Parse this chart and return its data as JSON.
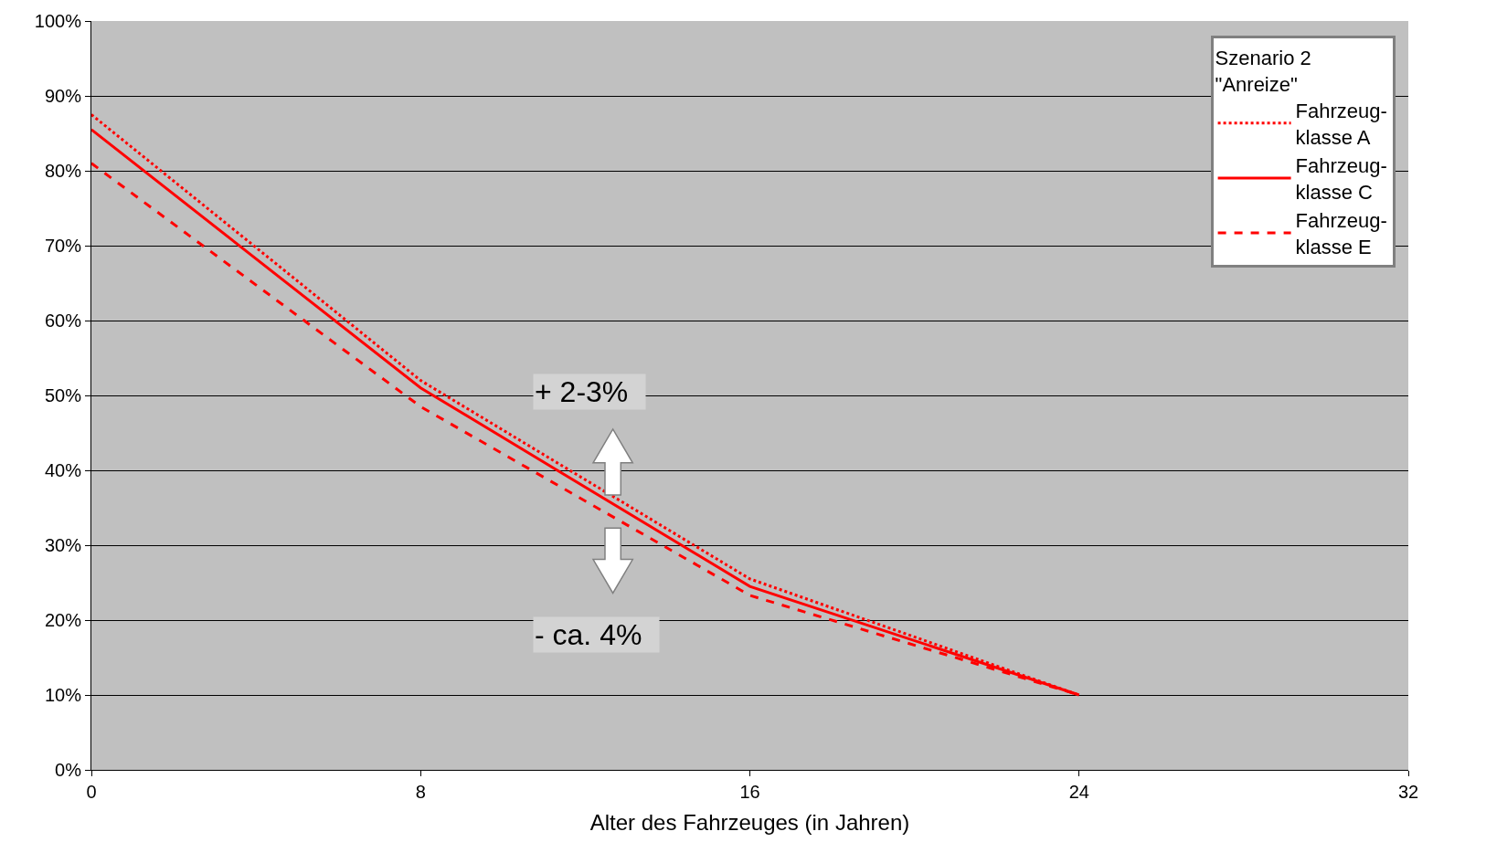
{
  "chart_data": {
    "type": "line",
    "xlabel": "Alter des Fahrzeuges (in Jahren)",
    "legend_title": "Szenario 2\n\"Anreize\"",
    "x": [
      0,
      8,
      16,
      24
    ],
    "series": [
      {
        "name": "Fahrzeug-\nklasse A",
        "color": "#ff0000",
        "line_style": "dotted",
        "values": [
          87.5,
          52,
          25.5,
          10
        ]
      },
      {
        "name": "Fahrzeug-\nklasse C",
        "color": "#ff0000",
        "line_style": "solid",
        "values": [
          85.5,
          51,
          24.5,
          10
        ]
      },
      {
        "name": "Fahrzeug-\nklasse E",
        "color": "#ff0000",
        "line_style": "dashed",
        "values": [
          81,
          48.5,
          23.3,
          10
        ]
      }
    ],
    "xlim": [
      0,
      32
    ],
    "xticks": [
      0,
      8,
      16,
      24,
      32
    ],
    "ylim": [
      0,
      100
    ],
    "yticks": [
      {
        "value": 0,
        "label": "0%"
      },
      {
        "value": 10,
        "label": "10%"
      },
      {
        "value": 20,
        "label": "20%"
      },
      {
        "value": 30,
        "label": "30%"
      },
      {
        "value": 40,
        "label": "40%"
      },
      {
        "value": 50,
        "label": "50%"
      },
      {
        "value": 60,
        "label": "60%"
      },
      {
        "value": 70,
        "label": "70%"
      },
      {
        "value": 80,
        "label": "80%"
      },
      {
        "value": 90,
        "label": "90%"
      },
      {
        "value": 100,
        "label": "100%"
      }
    ],
    "annotations": [
      "+ 2-3%",
      "- ca. 4%"
    ],
    "grid": "y",
    "legend": "top right",
    "marker": "none"
  }
}
